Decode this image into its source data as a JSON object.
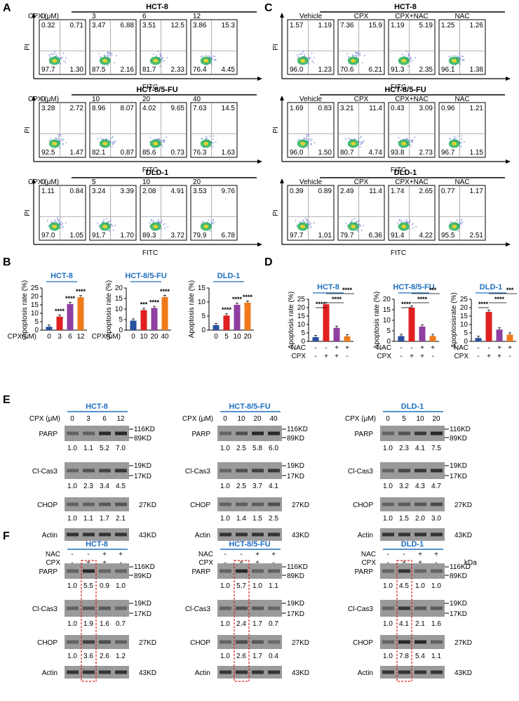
{
  "panel_letters": [
    "A",
    "B",
    "C",
    "D",
    "E",
    "F"
  ],
  "facs_common": {
    "x_axis": "FITC",
    "y_axis": "PI",
    "cpx_label": "CPX (μM)"
  },
  "facs_A": [
    {
      "line": "HCT-8",
      "conds": [
        "0",
        "3",
        "6",
        "12"
      ],
      "quadrants": [
        [
          "0.32",
          "0.71",
          "97.7",
          "1.30"
        ],
        [
          "3.47",
          "6.88",
          "87.5",
          "2.16"
        ],
        [
          "3.51",
          "12.5",
          "81.7",
          "2.33"
        ],
        [
          "3.86",
          "15.3",
          "76.4",
          "4.45"
        ]
      ]
    },
    {
      "line": "HCT-8/5-FU",
      "conds": [
        "0",
        "10",
        "20",
        "40"
      ],
      "quadrants": [
        [
          "3.28",
          "2.72",
          "92.5",
          "1.47"
        ],
        [
          "8.96",
          "8.07",
          "82.1",
          "0.87"
        ],
        [
          "4.02",
          "9.65",
          "85.6",
          "0.73"
        ],
        [
          "7.63",
          "14.5",
          "76.3",
          "1.63"
        ]
      ]
    },
    {
      "line": "DLD-1",
      "conds": [
        "0",
        "5",
        "10",
        "20"
      ],
      "quadrants": [
        [
          "1.11",
          "0.84",
          "97.0",
          "1.05"
        ],
        [
          "3.24",
          "3.39",
          "91.7",
          "1.70"
        ],
        [
          "2.08",
          "4.91",
          "89.3",
          "3.72"
        ],
        [
          "3.53",
          "9.76",
          "79.9",
          "6.78"
        ]
      ]
    }
  ],
  "facs_C": [
    {
      "line": "HCT-8",
      "conds": [
        "Vehicle",
        "CPX",
        "CPX+NAC",
        "NAC"
      ],
      "quadrants": [
        [
          "1.57",
          "1.19",
          "96.0",
          "1.23"
        ],
        [
          "7.36",
          "15.9",
          "70.6",
          "6.21"
        ],
        [
          "1.19",
          "5.19",
          "91.3",
          "2.35"
        ],
        [
          "1.25",
          "1.26",
          "96.1",
          "1.38"
        ]
      ]
    },
    {
      "line": "HCT-8/5-FU",
      "conds": [
        "Vehicle",
        "CPX",
        "CPX+NAC",
        "NAC"
      ],
      "quadrants": [
        [
          "1.69",
          "0.83",
          "96.0",
          "1.50"
        ],
        [
          "3.21",
          "11.4",
          "80.7",
          "4.74"
        ],
        [
          "0.43",
          "3.09",
          "93.8",
          "2.73"
        ],
        [
          "0.96",
          "1.21",
          "96.7",
          "1.15"
        ]
      ]
    },
    {
      "line": "DLD-1",
      "conds": [
        "Vehicle",
        "CPX",
        "CPX+NAC",
        "NAC"
      ],
      "quadrants": [
        [
          "0.39",
          "0.89",
          "97.7",
          "1.01"
        ],
        [
          "2.49",
          "11.4",
          "79.7",
          "6.36"
        ],
        [
          "1.74",
          "2.65",
          "91.4",
          "4.22"
        ],
        [
          "0.77",
          "1.17",
          "95.5",
          "2.51"
        ]
      ]
    }
  ],
  "chart_data": [
    {
      "type": "bar",
      "title": "HCT-8",
      "ylabel": "Apoptosis rate (%)",
      "xlabel": "CPX(μM)",
      "categories": [
        "0",
        "3",
        "6",
        "12"
      ],
      "values": [
        2,
        8,
        15.5,
        19.5
      ],
      "ylim": [
        0,
        25
      ],
      "yticks": [
        "0",
        "5",
        "10",
        "15",
        "20",
        "25"
      ],
      "significance": [
        "",
        "****",
        "****",
        "****"
      ],
      "colors": [
        "#2a4f9e",
        "#e02020",
        "#8e3fa0",
        "#ef7a1a"
      ]
    },
    {
      "type": "bar",
      "title": "HCT-8/5-FU",
      "ylabel": "Apoptosis rate (%)",
      "xlabel": "CPX(μM)",
      "categories": [
        "0",
        "10",
        "20",
        "40"
      ],
      "values": [
        4.5,
        9.5,
        10.5,
        15.7
      ],
      "ylim": [
        0,
        20
      ],
      "yticks": [
        "0",
        "5",
        "10",
        "15",
        "20"
      ],
      "significance": [
        "",
        "***",
        "****",
        "****"
      ],
      "colors": [
        "#2a4f9e",
        "#e02020",
        "#8e3fa0",
        "#ef7a1a"
      ]
    },
    {
      "type": "bar",
      "title": "DLD-1",
      "ylabel": "Apoptosis rate (%)",
      "xlabel": "",
      "categories": [
        "0",
        "5",
        "10",
        "20"
      ],
      "values": [
        1.8,
        5.2,
        9,
        9.8
      ],
      "ylim": [
        0,
        15
      ],
      "yticks": [
        "0",
        "5",
        "10",
        "15"
      ],
      "significance": [
        "",
        "****",
        "****",
        "****"
      ],
      "colors": [
        "#2a4f9e",
        "#e02020",
        "#8e3fa0",
        "#ef7a1a"
      ]
    },
    {
      "type": "bar",
      "title": "HCT-8",
      "ylabel": "Apoptosis rate (%)",
      "rows": {
        "NAC": [
          "-",
          "-",
          "+",
          "+"
        ],
        "CPX": [
          "-",
          "+",
          "+",
          "-"
        ]
      },
      "values": [
        2.5,
        22,
        8,
        3
      ],
      "ylim": [
        0,
        25
      ],
      "yticks": [
        "0",
        "5",
        "10",
        "15",
        "20",
        "25"
      ],
      "significance": [
        "****",
        "****",
        "****"
      ],
      "colors": [
        "#2a4f9e",
        "#e02020",
        "#8e3fa0",
        "#ef7a1a"
      ]
    },
    {
      "type": "bar",
      "title": "HCT-8/5-FU",
      "ylabel": "Apoptosis rate (%)",
      "rows": {
        "NAC": [
          "-",
          "-",
          "+",
          "+"
        ],
        "CPX": [
          "-",
          "+",
          "+",
          "-"
        ]
      },
      "values": [
        2.5,
        16,
        7,
        2.5
      ],
      "ylim": [
        0,
        20
      ],
      "yticks": [
        "0",
        "5",
        "10",
        "15",
        "20"
      ],
      "significance": [
        "****",
        "****",
        "***"
      ],
      "colors": [
        "#2a4f9e",
        "#e02020",
        "#8e3fa0",
        "#ef7a1a"
      ]
    },
    {
      "type": "bar",
      "title": "DLD-1",
      "ylabel": "Apoptosisrate (%)",
      "rows": {
        "NAC": [
          "-",
          "-",
          "+",
          "+"
        ],
        "CPX": [
          "-",
          "+",
          "+",
          "-"
        ]
      },
      "values": [
        2,
        17.5,
        7,
        4
      ],
      "ylim": [
        0,
        25
      ],
      "yticks": [
        "0",
        "5",
        "10",
        "15",
        "20",
        "25"
      ],
      "significance": [
        "****",
        "****",
        "***"
      ],
      "colors": [
        "#2a4f9e",
        "#e02020",
        "#8e3fa0",
        "#ef7a1a"
      ]
    }
  ],
  "blot_E": {
    "cpx_label": "CPX (μM)",
    "groups": [
      {
        "line": "HCT-8",
        "conds": [
          "0",
          "3",
          "6",
          "12"
        ],
        "parp": [
          "1.0",
          "1.1",
          "5.2",
          "7.0"
        ],
        "cas3": [
          "1.0",
          "2.3",
          "3.4",
          "4.5"
        ],
        "chop": [
          "1.0",
          "1.1",
          "1.7",
          "2.1"
        ]
      },
      {
        "line": "HCT-8/5-FU",
        "conds": [
          "0",
          "10",
          "20",
          "40"
        ],
        "parp": [
          "1.0",
          "2.5",
          "5.8",
          "6.0"
        ],
        "cas3": [
          "1.0",
          "2.5",
          "3.7",
          "4.1"
        ],
        "chop": [
          "1.0",
          "1.4",
          "1.5",
          "2.5"
        ]
      },
      {
        "line": "DLD-1",
        "conds": [
          "0",
          "5",
          "10",
          "20"
        ],
        "parp": [
          "1.0",
          "2.3",
          "4.1",
          "7.5"
        ],
        "cas3": [
          "1.0",
          "3.2",
          "4.3",
          "4.7"
        ],
        "chop": [
          "1.0",
          "1.5",
          "2.0",
          "3.0"
        ]
      }
    ]
  },
  "blot_F": {
    "nac": [
      "-",
      "-",
      "+",
      "+"
    ],
    "cpx": [
      "-",
      "+",
      "+",
      "-"
    ],
    "kda": "kDa",
    "groups": [
      {
        "line": "HCT-8",
        "parp": [
          "1.0",
          "5.5",
          "0.9",
          "1.0"
        ],
        "cas3": [
          "1.0",
          "1.9",
          "1.6",
          "0.7"
        ],
        "chop": [
          "1.0",
          "3.6",
          "2.6",
          "1.2"
        ]
      },
      {
        "line": "HCT-8/5-FU",
        "parp": [
          "1.0",
          "5.7",
          "1.0",
          "1.1"
        ],
        "cas3": [
          "1.0",
          "2.4",
          "1.7",
          "0.7"
        ],
        "chop": [
          "1.0",
          "2.6",
          "1.7",
          "0.4"
        ]
      },
      {
        "line": "DLD-1",
        "parp": [
          "1.0",
          "4.5",
          "1.0",
          "1.0"
        ],
        "cas3": [
          "1.0",
          "4.1",
          "2.1",
          "1.6"
        ],
        "chop": [
          "1.0",
          "7.8",
          "5.4",
          "1.1"
        ]
      }
    ]
  },
  "blot_labels": {
    "parp": "PARP",
    "cas3": "Cl-Cas3",
    "chop": "CHOP",
    "actin": "Actin",
    "nac": "NAC",
    "cpx": "CPX"
  },
  "kd": {
    "parp_hi": "116KD",
    "parp_lo": "89KD",
    "cas3_hi": "19KD",
    "cas3_lo": "17KD",
    "chop": "27KD",
    "actin": "43KD"
  }
}
